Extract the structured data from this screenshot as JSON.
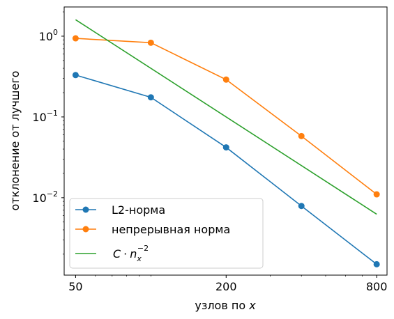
{
  "chart_data": {
    "type": "line",
    "xlabel": "узлов по x",
    "ylabel": "отклонение от лучшего",
    "xscale": "log",
    "yscale": "log",
    "xlim": [
      45,
      880
    ],
    "ylim": [
      0.0011,
      2.3
    ],
    "xticks": [
      {
        "value": 50,
        "label": "50"
      },
      {
        "value": 200,
        "label": "200"
      },
      {
        "value": 800,
        "label": "800"
      }
    ],
    "yticks": [
      {
        "value": 1,
        "base": "10",
        "exp": "0"
      },
      {
        "value": 0.1,
        "base": "10",
        "exp": "−1"
      },
      {
        "value": 0.01,
        "base": "10",
        "exp": "−2"
      }
    ],
    "grid": false,
    "legend_position": "lower-left",
    "series": [
      {
        "name": "L2-норма",
        "color": "#1f77b4",
        "markers": true,
        "x": [
          50,
          100,
          200,
          400,
          800
        ],
        "y": [
          0.33,
          0.175,
          0.042,
          0.0079,
          0.0015
        ]
      },
      {
        "name": "непрерывная норма",
        "color": "#ff7f0e",
        "markers": true,
        "x": [
          50,
          100,
          200,
          400,
          800
        ],
        "y": [
          0.94,
          0.83,
          0.29,
          0.058,
          0.011
        ]
      },
      {
        "name_parts": {
          "c": "C",
          "dot": "·",
          "n": "n",
          "sub": "x",
          "sup": "−2"
        },
        "color": "#2ca02c",
        "markers": false,
        "x": [
          50,
          800
        ],
        "y": [
          1.6,
          0.00625
        ]
      }
    ]
  }
}
